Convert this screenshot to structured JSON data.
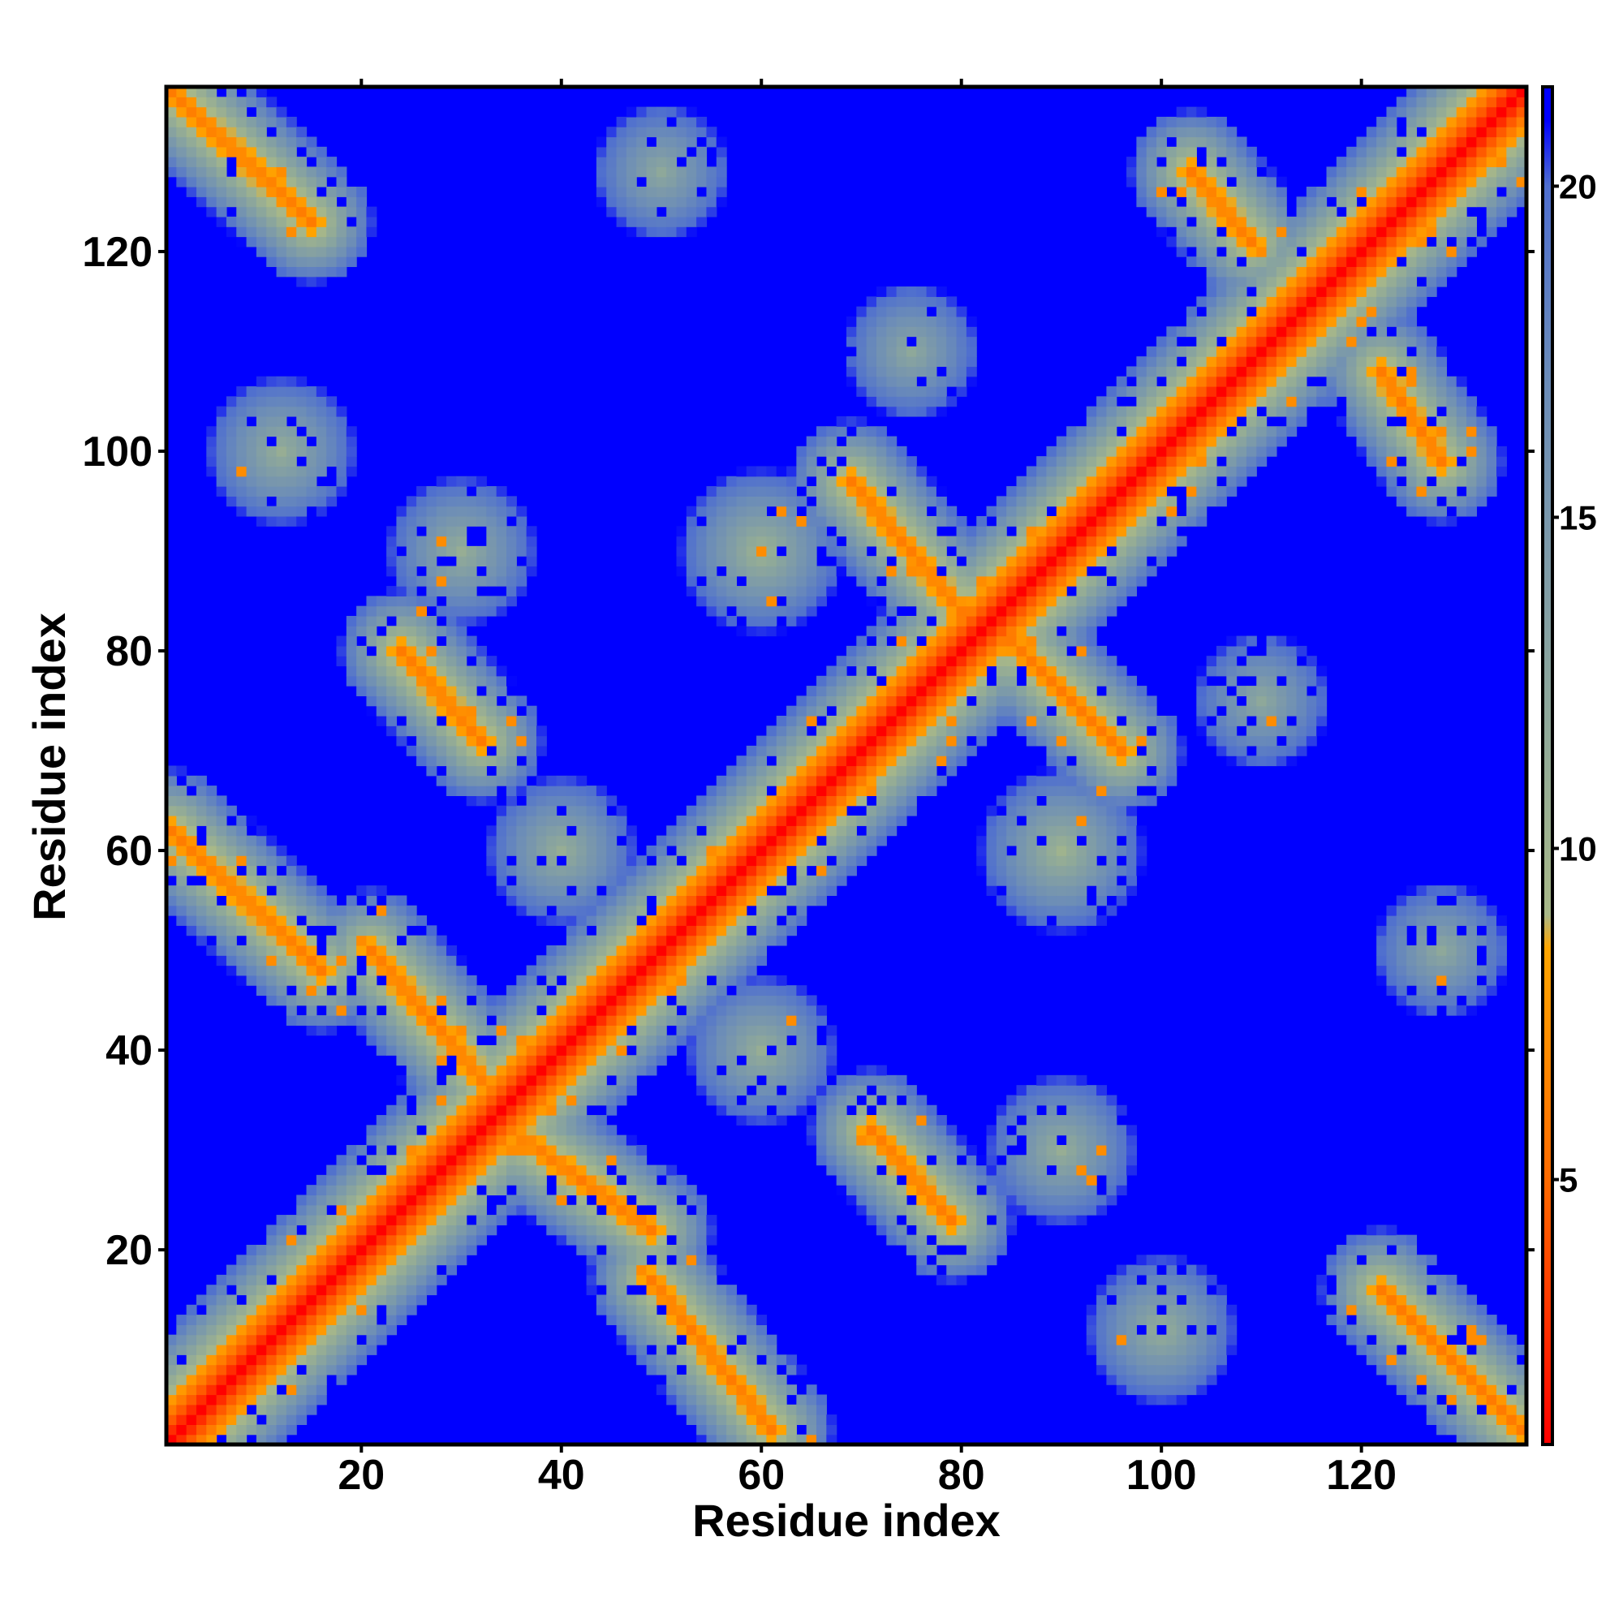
{
  "chart_data": {
    "type": "heatmap",
    "title": "",
    "xlabel": "Residue index",
    "ylabel": "Residue index",
    "xlim": [
      1,
      136
    ],
    "ylim": [
      1,
      136
    ],
    "n_residues": 136,
    "x_ticks": [
      20,
      40,
      60,
      80,
      100,
      120
    ],
    "y_ticks": [
      20,
      40,
      60,
      80,
      100,
      120
    ],
    "colorbar": {
      "range": [
        1,
        21.5
      ],
      "ticks": [
        5,
        10,
        15,
        20
      ],
      "stops": [
        {
          "value": 1,
          "color": "#ff0000"
        },
        {
          "value": 5,
          "color": "#ff6a00"
        },
        {
          "value": 8.5,
          "color": "#ffa500"
        },
        {
          "value": 9,
          "color": "#a8b888"
        },
        {
          "value": 12,
          "color": "#8ea89a"
        },
        {
          "value": 17,
          "color": "#6b8cb8"
        },
        {
          "value": 20,
          "color": "#4f6fcf"
        },
        {
          "value": 21,
          "color": "#0000ff"
        },
        {
          "value": 21.5,
          "color": "#0000ff"
        }
      ]
    },
    "background_color": "#0000ff",
    "contact_bands": [
      {
        "kind": "diagonal",
        "x1": 1,
        "y1": 1,
        "x2": 136,
        "y2": 136,
        "min_value": 1
      },
      {
        "kind": "anti",
        "x1": 1,
        "y1": 136,
        "x2": 15,
        "y2": 123,
        "min_value": 6
      },
      {
        "kind": "anti",
        "x1": 1,
        "y1": 62,
        "x2": 16,
        "y2": 48,
        "min_value": 6
      },
      {
        "kind": "anti",
        "x1": 21,
        "y1": 50,
        "x2": 33,
        "y2": 36,
        "min_value": 6
      },
      {
        "kind": "anti",
        "x1": 24,
        "y1": 80,
        "x2": 32,
        "y2": 71,
        "min_value": 6
      },
      {
        "kind": "anti",
        "x1": 35,
        "y1": 32,
        "x2": 49,
        "y2": 22,
        "min_value": 6
      },
      {
        "kind": "anti",
        "x1": 49,
        "y1": 17,
        "x2": 61,
        "y2": 2,
        "min_value": 6
      },
      {
        "kind": "anti",
        "x1": 69,
        "y1": 97,
        "x2": 80,
        "y2": 84,
        "min_value": 6
      },
      {
        "kind": "anti",
        "x1": 71,
        "y1": 32,
        "x2": 79,
        "y2": 23,
        "min_value": 6
      },
      {
        "kind": "anti",
        "x1": 84,
        "y1": 82,
        "x2": 96,
        "y2": 70,
        "min_value": 6
      },
      {
        "kind": "anti",
        "x1": 103,
        "y1": 128,
        "x2": 109,
        "y2": 121,
        "min_value": 6
      },
      {
        "kind": "anti",
        "x1": 122,
        "y1": 108,
        "x2": 128,
        "y2": 99,
        "min_value": 6
      },
      {
        "kind": "anti",
        "x1": 122,
        "y1": 16,
        "x2": 136,
        "y2": 2,
        "min_value": 6
      },
      {
        "kind": "blob",
        "x": 60,
        "y": 90,
        "min_value": 10
      },
      {
        "kind": "blob",
        "x": 90,
        "y": 60,
        "min_value": 10
      },
      {
        "kind": "blob",
        "x": 12,
        "y": 100,
        "min_value": 11
      },
      {
        "kind": "blob",
        "x": 100,
        "y": 12,
        "min_value": 11
      },
      {
        "kind": "blob",
        "x": 50,
        "y": 128,
        "min_value": 12
      },
      {
        "kind": "blob",
        "x": 128,
        "y": 50,
        "min_value": 12
      },
      {
        "kind": "blob",
        "x": 75,
        "y": 110,
        "min_value": 12
      },
      {
        "kind": "blob",
        "x": 110,
        "y": 75,
        "min_value": 12
      },
      {
        "kind": "blob",
        "x": 30,
        "y": 90,
        "min_value": 11
      },
      {
        "kind": "blob",
        "x": 90,
        "y": 30,
        "min_value": 11
      },
      {
        "kind": "blob",
        "x": 40,
        "y": 60,
        "min_value": 11
      },
      {
        "kind": "blob",
        "x": 60,
        "y": 40,
        "min_value": 11
      }
    ]
  }
}
